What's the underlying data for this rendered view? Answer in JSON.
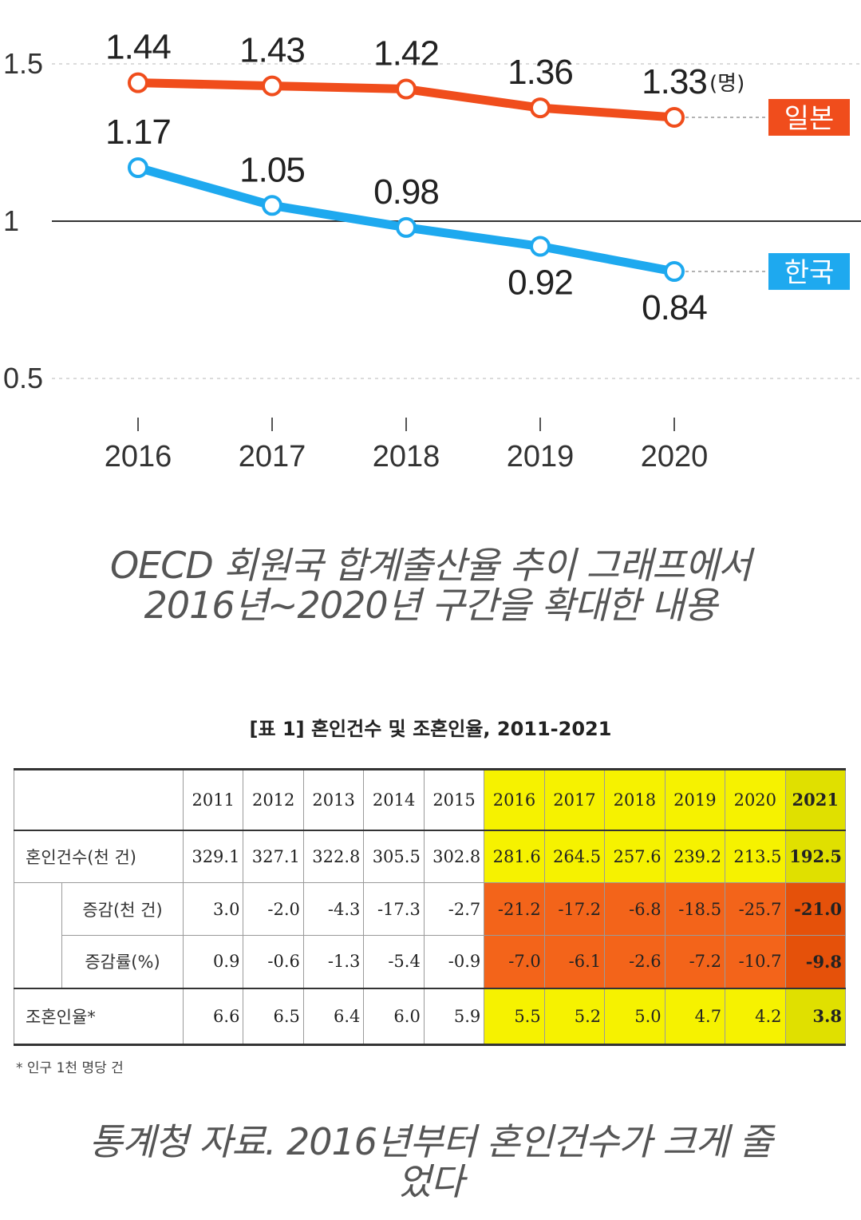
{
  "chart_data": {
    "type": "line",
    "x": [
      "2016",
      "2017",
      "2018",
      "2019",
      "2020"
    ],
    "series": [
      {
        "name": "일본",
        "values": [
          1.44,
          1.43,
          1.42,
          1.36,
          1.33
        ],
        "color": "#f04d1c"
      },
      {
        "name": "한국",
        "values": [
          1.17,
          1.05,
          0.98,
          0.92,
          0.84
        ],
        "color": "#1ea9ef"
      }
    ],
    "data_labels": {
      "일본": [
        "1.44",
        "1.43",
        "1.42",
        "1.36",
        "1.33"
      ],
      "한국": [
        "1.17",
        "1.05",
        "0.98",
        "0.92",
        "0.84"
      ]
    },
    "unit_label": "(명)",
    "yticks": [
      "1.5",
      "1",
      "0.5"
    ],
    "ytick_values": [
      1.5,
      1.0,
      0.5
    ],
    "ylim": [
      0.5,
      1.5
    ],
    "grid": "dashed at 1.5 and 0.5, solid at 1",
    "legend": "right, boxed labels next to line ends",
    "title": "",
    "xlabel": "",
    "ylabel": ""
  },
  "caption1": {
    "line1": "OECD 회원국 합계출산율 추이 그래프에서",
    "line2": "2016년~2020년 구간을 확대한 내용"
  },
  "table": {
    "title": "[표 1] 혼인건수 및 조혼인율, 2011-2021",
    "years": [
      "2011",
      "2012",
      "2013",
      "2014",
      "2015",
      "2016",
      "2017",
      "2018",
      "2019",
      "2020",
      "2021"
    ],
    "rows": [
      {
        "label": "혼인건수(천 건)",
        "values": [
          "329.1",
          "327.1",
          "322.8",
          "305.5",
          "302.8",
          "281.6",
          "264.5",
          "257.6",
          "239.2",
          "213.5",
          "192.5"
        ]
      },
      {
        "label": "증감(천 건)",
        "values": [
          "3.0",
          "-2.0",
          "-4.3",
          "-17.3",
          "-2.7",
          "-21.2",
          "-17.2",
          "-6.8",
          "-18.5",
          "-25.7",
          "-21.0"
        ]
      },
      {
        "label": "증감률(%)",
        "values": [
          "0.9",
          "-0.6",
          "-1.3",
          "-5.4",
          "-0.9",
          "-7.0",
          "-6.1",
          "-2.6",
          "-7.2",
          "-10.7",
          "-9.8"
        ]
      },
      {
        "label": "조혼인율*",
        "values": [
          "6.6",
          "6.5",
          "6.4",
          "6.0",
          "5.9",
          "5.5",
          "5.2",
          "5.0",
          "4.7",
          "4.2",
          "3.8"
        ]
      }
    ],
    "footnote": "* 인구 1천 명당 건",
    "highlight_colors": {
      "yellow": "#f6f200",
      "orange": "#f3641a"
    }
  },
  "caption2": {
    "line1": "통계청 자료. 2016년부터 혼인건수가 크게 줄",
    "line2": "었다"
  }
}
